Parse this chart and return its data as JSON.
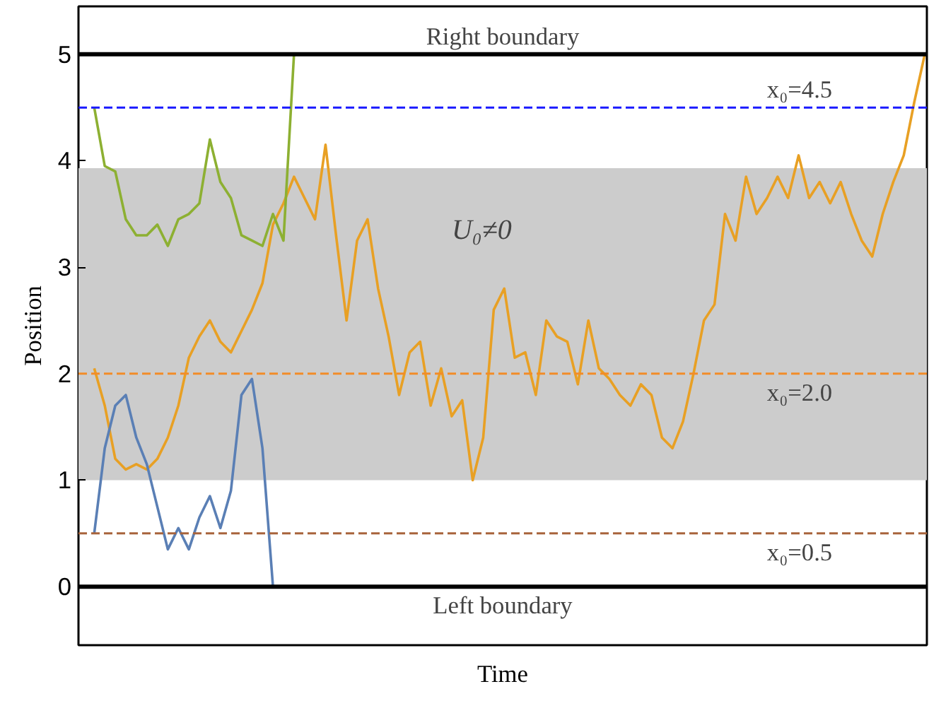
{
  "chart_data": {
    "type": "line",
    "xlabel": "Time",
    "ylabel": "Position",
    "categories": [
      null,
      null,
      null,
      null,
      null,
      null,
      null,
      null,
      null,
      null,
      null,
      null,
      null,
      null,
      null,
      null,
      null,
      null,
      null,
      null,
      null,
      null,
      null,
      null,
      null,
      null,
      null,
      null,
      null,
      null,
      null,
      null,
      null,
      null,
      null,
      null,
      null,
      null,
      null,
      null,
      null,
      null,
      null,
      null,
      null,
      null,
      null,
      null,
      null,
      null,
      null,
      null,
      null,
      null,
      null,
      null,
      null,
      null,
      null,
      null,
      null,
      null,
      null,
      null,
      null,
      null,
      null,
      null,
      null,
      null,
      null,
      null,
      null,
      null,
      null,
      null,
      null,
      null,
      null,
      null
    ],
    "series": [
      {
        "color": "#e8a024",
        "values": [
          2.05,
          1.7,
          1.2,
          1.1,
          1.15,
          1.1,
          1.2,
          1.4,
          1.7,
          2.15,
          2.35,
          2.5,
          2.3,
          2.2,
          2.4,
          2.6,
          2.85,
          3.4,
          3.6,
          3.85,
          3.65,
          3.45,
          4.15,
          3.3,
          2.5,
          3.25,
          3.45,
          2.8,
          2.35,
          1.8,
          2.2,
          2.3,
          1.7,
          2.05,
          1.6,
          1.75,
          1.0,
          1.4,
          2.6,
          2.8,
          2.15,
          2.2,
          1.8,
          2.5,
          2.35,
          2.3,
          1.9,
          2.5,
          2.05,
          1.95,
          1.8,
          1.7,
          1.9,
          1.8,
          1.4,
          1.3,
          1.55,
          2.0,
          2.5,
          2.65,
          3.5,
          3.25,
          3.85,
          3.5,
          3.65,
          3.85,
          3.65,
          4.05,
          3.65,
          3.8,
          3.6,
          3.8,
          3.5,
          3.25,
          3.1,
          3.5,
          3.8,
          4.05,
          4.55,
          5.0
        ]
      },
      {
        "color": "#5a7fb5",
        "values": [
          0.5,
          1.3,
          1.7,
          1.8,
          1.4,
          1.15,
          0.75,
          0.35,
          0.55,
          0.35,
          0.65,
          0.85,
          0.55,
          0.9,
          1.8,
          1.95,
          1.3,
          0.0,
          null,
          null,
          null,
          null,
          null,
          null,
          null,
          null,
          null,
          null,
          null,
          null,
          null,
          null,
          null,
          null,
          null,
          null,
          null,
          null,
          null,
          null,
          null,
          null,
          null,
          null,
          null,
          null,
          null,
          null,
          null,
          null,
          null,
          null,
          null,
          null,
          null,
          null,
          null,
          null,
          null,
          null,
          null,
          null,
          null,
          null,
          null,
          null,
          null,
          null,
          null,
          null,
          null,
          null,
          null,
          null,
          null,
          null,
          null,
          null,
          null,
          null
        ]
      },
      {
        "color": "#8db032",
        "values": [
          4.5,
          3.95,
          3.9,
          3.45,
          3.3,
          3.3,
          3.4,
          3.2,
          3.45,
          3.5,
          3.6,
          4.2,
          3.8,
          3.65,
          3.3,
          3.25,
          3.2,
          3.5,
          3.25,
          5.0,
          null,
          null,
          null,
          null,
          null,
          null,
          null,
          null,
          null,
          null,
          null,
          null,
          null,
          null,
          null,
          null,
          null,
          null,
          null,
          null,
          null,
          null,
          null,
          null,
          null,
          null,
          null,
          null,
          null,
          null,
          null,
          null,
          null,
          null,
          null,
          null,
          null,
          null,
          null,
          null,
          null,
          null,
          null,
          null,
          null,
          null,
          null,
          null,
          null,
          null,
          null,
          null,
          null,
          null,
          null,
          null,
          null,
          null,
          null,
          null
        ]
      }
    ],
    "ylim": [
      -0.55,
      5.45
    ],
    "yticks": [
      0,
      1,
      2,
      3,
      4,
      5
    ],
    "tick_labels": "y",
    "grid": false,
    "line_style": "solid",
    "marker": "none",
    "bands": [
      {
        "axis": "y",
        "from": 1,
        "to": 3.93,
        "label": "U₀≠0",
        "color": "#cccccc"
      }
    ],
    "ref_lines": [
      {
        "axis": "y",
        "value": 5,
        "label": "Right boundary",
        "color": "#000000",
        "line_style": "solid"
      },
      {
        "axis": "y",
        "value": 4.5,
        "label": "x₀=4.5",
        "color": "#1a1aff",
        "line_style": "dashed"
      },
      {
        "axis": "y",
        "value": 2,
        "label": "x₀=2.0",
        "color": "#f28c28",
        "line_style": "dashed"
      },
      {
        "axis": "y",
        "value": 0.5,
        "label": "x₀=0.5",
        "color": "#a8643c",
        "line_style": "dashed"
      },
      {
        "axis": "y",
        "value": 0,
        "label": "Left boundary",
        "color": "#000000",
        "line_style": "solid"
      }
    ]
  }
}
